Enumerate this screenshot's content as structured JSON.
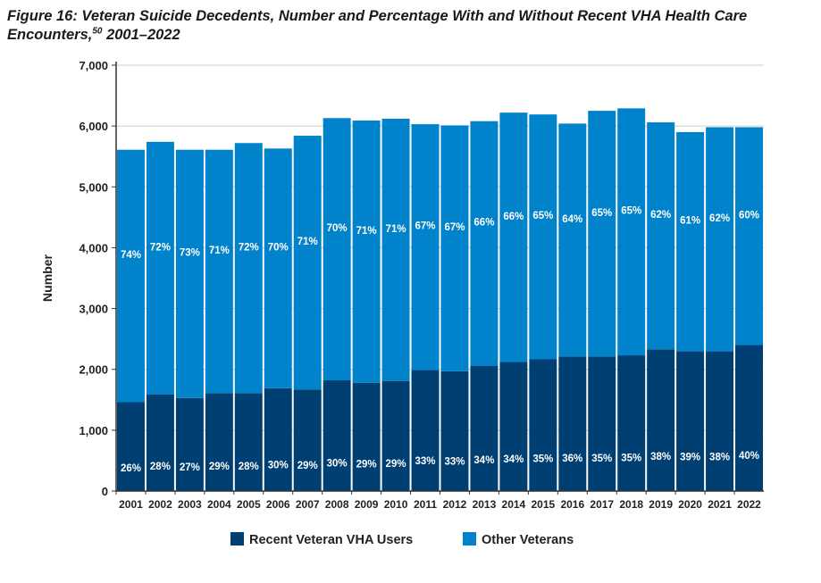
{
  "title": {
    "main": "Figure 16: Veteran Suicide Decedents, Number and Percentage With and Without Recent VHA Health Care Encounters,",
    "footnote": "50",
    "years": " 2001–2022"
  },
  "chart_data": {
    "type": "bar",
    "stacked": true,
    "categories": [
      "2001",
      "2002",
      "2003",
      "2004",
      "2005",
      "2006",
      "2007",
      "2008",
      "2009",
      "2010",
      "2011",
      "2012",
      "2013",
      "2014",
      "2015",
      "2016",
      "2017",
      "2018",
      "2019",
      "2020",
      "2021",
      "2022"
    ],
    "ylabel": "Number",
    "xlabel": "",
    "ylim": [
      0,
      7000
    ],
    "yticks": [
      0,
      1000,
      2000,
      3000,
      4000,
      5000,
      6000,
      7000
    ],
    "ytick_labels": [
      "0",
      "1,000",
      "2,000",
      "3,000",
      "4,000",
      "5,000",
      "6,000",
      "7,000"
    ],
    "grid": true,
    "legend_position": "bottom",
    "series": [
      {
        "name": "Recent Veteran VHA Users",
        "color": "#003f72",
        "values": [
          1460,
          1590,
          1530,
          1610,
          1610,
          1690,
          1670,
          1820,
          1780,
          1810,
          1990,
          1970,
          2060,
          2120,
          2170,
          2210,
          2210,
          2230,
          2330,
          2300,
          2300,
          2400
        ],
        "labels": [
          "26%",
          "28%",
          "27%",
          "29%",
          "28%",
          "30%",
          "29%",
          "30%",
          "29%",
          "29%",
          "33%",
          "33%",
          "34%",
          "34%",
          "35%",
          "36%",
          "35%",
          "35%",
          "38%",
          "39%",
          "38%",
          "40%"
        ]
      },
      {
        "name": "Other Veterans",
        "color": "#0083ca",
        "values": [
          4150,
          4150,
          4080,
          4000,
          4110,
          3940,
          4170,
          4310,
          4310,
          4310,
          4040,
          4040,
          4020,
          4100,
          4020,
          3830,
          4040,
          4060,
          3730,
          3600,
          3680,
          3580
        ],
        "labels": [
          "74%",
          "72%",
          "73%",
          "71%",
          "72%",
          "70%",
          "71%",
          "70%",
          "71%",
          "71%",
          "67%",
          "67%",
          "66%",
          "66%",
          "65%",
          "64%",
          "65%",
          "65%",
          "62%",
          "61%",
          "62%",
          "60%"
        ]
      }
    ]
  }
}
